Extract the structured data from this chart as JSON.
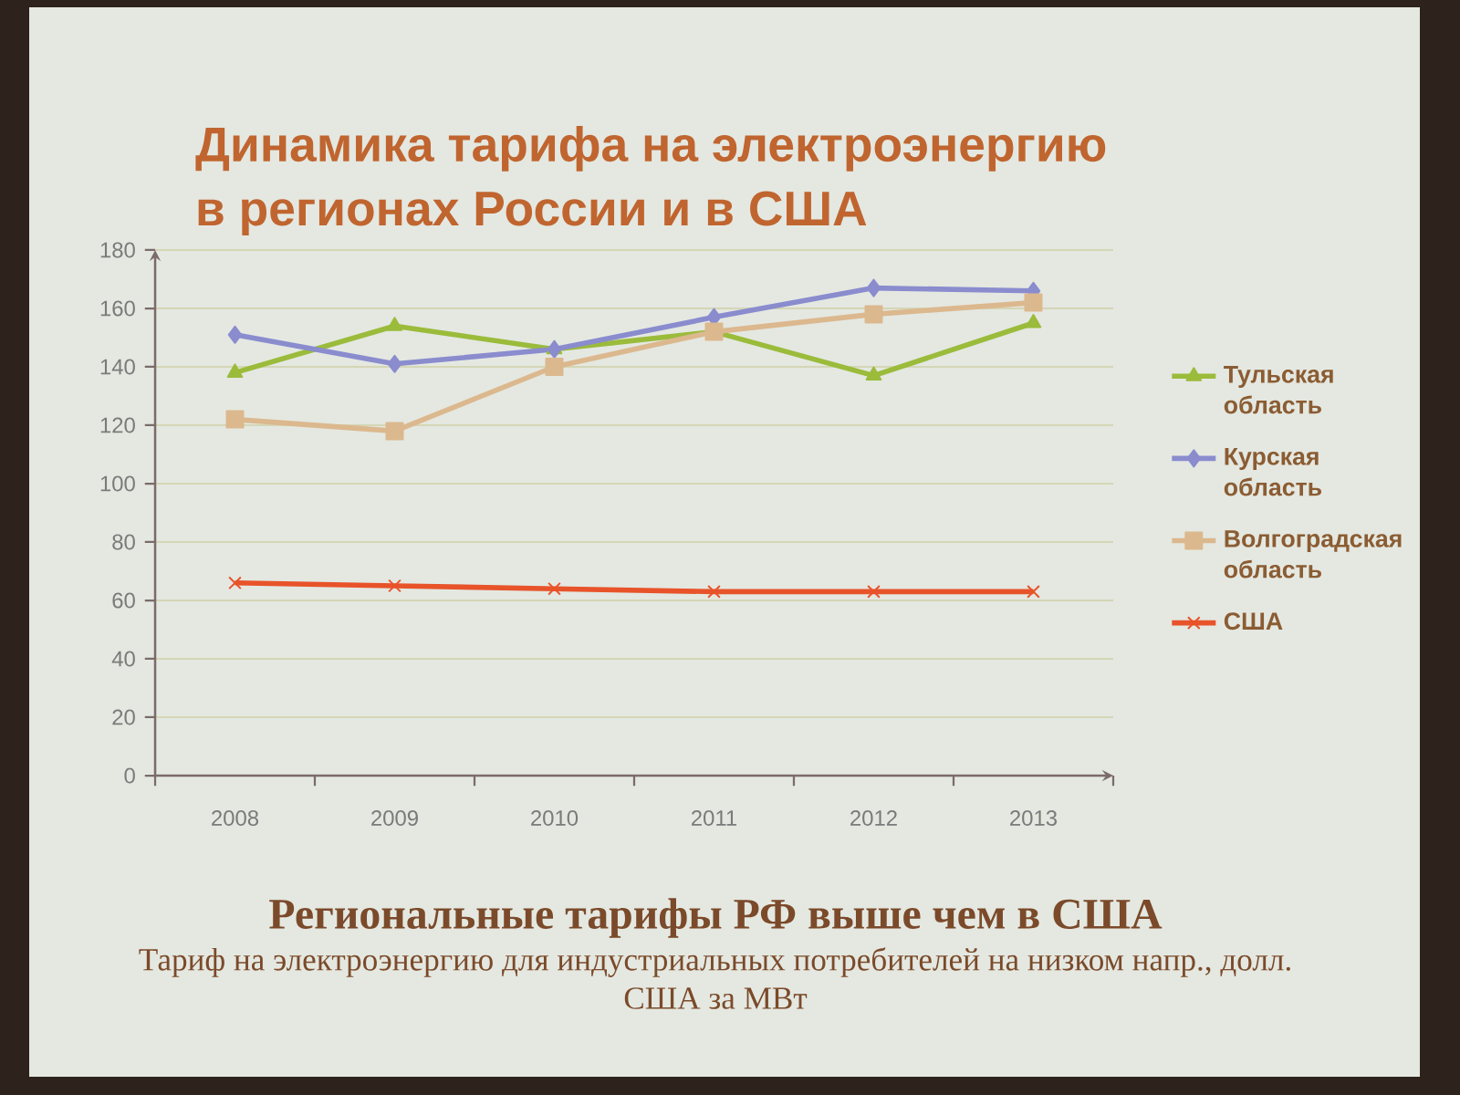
{
  "chart_data": {
    "type": "line",
    "title": "Динамика тарифа на электроэнергию в регионах России и в США",
    "annotations": [
      "Региональные тарифы РФ выше чем в США",
      "Тариф на электроэнергию для индустриальных потребителей на низком напр., долл. США за МВт"
    ],
    "categories": [
      "2008",
      "2009",
      "2010",
      "2011",
      "2012",
      "2013"
    ],
    "series": [
      {
        "name": "Тульская область",
        "color": "#9bbb3b",
        "marker": "triangle",
        "values": [
          138,
          154,
          146,
          152,
          137,
          155
        ]
      },
      {
        "name": "Курская область",
        "color": "#8a8cce",
        "marker": "diamond",
        "values": [
          151,
          141,
          146,
          157,
          167,
          166
        ]
      },
      {
        "name": "Волгоградская область",
        "color": "#dcb88e",
        "marker": "square",
        "values": [
          122,
          118,
          140,
          152,
          158,
          162
        ]
      },
      {
        "name": "США",
        "color": "#e8532a",
        "marker": "cross",
        "values": [
          66,
          65,
          64,
          63,
          63,
          63
        ]
      }
    ],
    "ylim": [
      0,
      180
    ],
    "yticks": [
      0,
      20,
      40,
      60,
      80,
      100,
      120,
      140,
      160,
      180
    ],
    "grid": "y",
    "legend": "right"
  }
}
